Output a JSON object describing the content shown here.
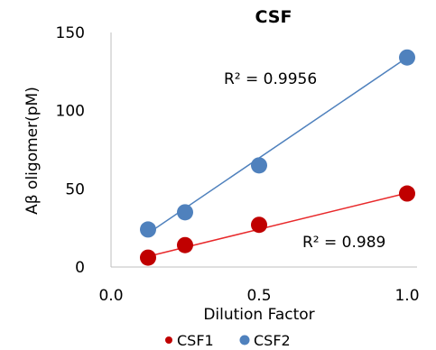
{
  "chart_data": {
    "type": "scatter",
    "title": "CSF",
    "xlabel": "Dilution Factor",
    "ylabel": "Aβ oligomer(pM)",
    "xlim": [
      0.0,
      1.0
    ],
    "ylim": [
      0,
      150
    ],
    "x_ticks": [
      "0.0",
      "0.5",
      "1.0"
    ],
    "y_ticks": [
      "0",
      "50",
      "100",
      "150"
    ],
    "grid": false,
    "legend_position": "bottom",
    "series": [
      {
        "name": "CSF1",
        "color": "#C00000",
        "line_color": "#E8292B",
        "x": [
          0.125,
          0.25,
          0.5,
          1.0
        ],
        "y": [
          6,
          14,
          27,
          47
        ],
        "trendline": [
          [
            0.125,
            6.8
          ],
          [
            1.0,
            47.3
          ]
        ],
        "r2_label": "R² = 0.989"
      },
      {
        "name": "CSF2",
        "color": "#4F81BD",
        "line_color": "#4F81BD",
        "x": [
          0.125,
          0.25,
          0.5,
          1.0
        ],
        "y": [
          24,
          35,
          65,
          134
        ],
        "trendline": [
          [
            0.125,
            21.5
          ],
          [
            1.0,
            134.0
          ]
        ],
        "r2_label": "R² = 0.9956"
      }
    ]
  }
}
